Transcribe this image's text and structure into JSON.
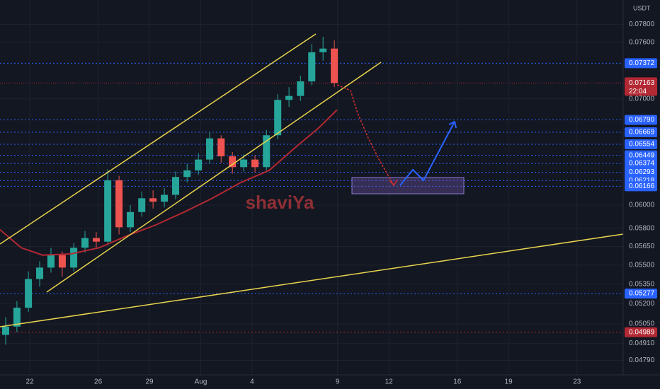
{
  "chart_data": {
    "type": "candlestick",
    "currency": "USDT",
    "watermark": "shaviYa",
    "log_scale": true,
    "grid": true,
    "up_color": "#26a69a",
    "down_color": "#ef5350",
    "x": [
      20.59,
      21.25,
      21.92,
      22.58,
      23.24,
      23.9,
      24.57,
      25.23,
      25.89,
      26.56,
      27.22,
      27.88,
      28.55,
      29.21,
      29.87,
      30.53,
      31.2,
      31.86,
      32.52,
      33.19,
      33.85,
      34.51,
      35.17,
      35.84,
      36.5,
      37.16,
      37.83,
      38.49,
      39.15,
      39.81
    ],
    "open": [
      0.0497,
      0.0503,
      0.0517,
      0.0539,
      0.0548,
      0.0558,
      0.0548,
      0.0564,
      0.0572,
      0.0569,
      0.0622,
      0.0581,
      0.0594,
      0.0606,
      0.0603,
      0.0609,
      0.0625,
      0.0631,
      0.0641,
      0.0661,
      0.0644,
      0.0634,
      0.0641,
      0.0634,
      0.0664,
      0.0699,
      0.0703,
      0.0718,
      0.0749,
      0.0753
    ],
    "high": [
      0.051,
      0.0522,
      0.0545,
      0.0553,
      0.0564,
      0.0561,
      0.0568,
      0.0578,
      0.0577,
      0.0632,
      0.0626,
      0.06,
      0.0612,
      0.0613,
      0.0615,
      0.063,
      0.0637,
      0.0647,
      0.0667,
      0.0664,
      0.0648,
      0.0646,
      0.0645,
      0.0669,
      0.0705,
      0.0712,
      0.0724,
      0.0758,
      0.0766,
      0.0762
    ],
    "low": [
      0.049,
      0.0499,
      0.0514,
      0.0533,
      0.0544,
      0.0541,
      0.0545,
      0.056,
      0.0563,
      0.0566,
      0.0575,
      0.0577,
      0.059,
      0.0597,
      0.0598,
      0.0605,
      0.062,
      0.0627,
      0.0637,
      0.0638,
      0.0628,
      0.063,
      0.0629,
      0.0631,
      0.066,
      0.0692,
      0.0698,
      0.0714,
      0.074,
      0.0712
    ],
    "close": [
      0.0503,
      0.0517,
      0.0539,
      0.0548,
      0.0558,
      0.0548,
      0.0564,
      0.0572,
      0.0569,
      0.0622,
      0.0581,
      0.0594,
      0.0606,
      0.0603,
      0.0609,
      0.0625,
      0.0631,
      0.0641,
      0.0661,
      0.0644,
      0.0634,
      0.0641,
      0.0634,
      0.0664,
      0.0699,
      0.0703,
      0.0718,
      0.0749,
      0.0753,
      0.07163
    ],
    "ma": {
      "color": "#b22833",
      "x": [
        20.26,
        21.5,
        22.75,
        24.4,
        26.06,
        27.71,
        29.37,
        31.03,
        32.68,
        34.34,
        36.0,
        37.65,
        38.89,
        39.97
      ],
      "values": [
        0.0579,
        0.0564,
        0.0558,
        0.0559,
        0.0564,
        0.0574,
        0.0583,
        0.0594,
        0.0606,
        0.062,
        0.0631,
        0.0654,
        0.0671,
        0.0689
      ]
    },
    "xlim": [
      20.26,
      56.7
    ],
    "xticks": [
      22,
      26,
      29,
      {
        "value": 32,
        "label": "Aug"
      },
      {
        "value": 35,
        "label": "4"
      },
      {
        "value": 40,
        "label": "9"
      },
      {
        "value": 43,
        "label": "12"
      },
      {
        "value": 47,
        "label": "16"
      },
      {
        "value": 50,
        "label": "19"
      },
      {
        "value": 54,
        "label": "23"
      }
    ],
    "ylim": [
      0.0469,
      0.0808
    ],
    "yticks": [
      {
        "value": 0.078,
        "label": "0.07800"
      },
      {
        "value": 0.076,
        "label": "0.07600"
      },
      {
        "value": 0.07,
        "label": "0.07000"
      },
      {
        "value": 0.06,
        "label": "0.06000"
      },
      {
        "value": 0.058,
        "label": "0.05800"
      },
      {
        "value": 0.0565,
        "label": "0.05650"
      },
      {
        "value": 0.055,
        "label": "0.05500"
      },
      {
        "value": 0.0535,
        "label": "0.05350"
      },
      {
        "value": 0.052,
        "label": "0.05200"
      },
      {
        "value": 0.0505,
        "label": "0.05050"
      },
      {
        "value": 0.0491,
        "label": "0.04910"
      },
      {
        "value": 0.0479,
        "label": "0.04790"
      }
    ],
    "levels": [
      {
        "value": 0.07372,
        "color": "#2962ff"
      },
      {
        "value": 0.0679,
        "label": "0.06790",
        "color": "#2962ff"
      },
      {
        "value": 0.06669,
        "color": "#2962ff"
      },
      {
        "value": 0.06554,
        "color": "#2962ff"
      },
      {
        "value": 0.06449,
        "color": "#2962ff"
      },
      {
        "value": 0.06374,
        "color": "#2962ff"
      },
      {
        "value": 0.06293,
        "color": "#2962ff"
      },
      {
        "value": 0.06218,
        "color": "#2962ff"
      },
      {
        "value": 0.06166,
        "color": "#2962ff"
      },
      {
        "value": 0.05277,
        "color": "#2962ff"
      },
      {
        "value": 0.04989,
        "color": "#b22833"
      }
    ],
    "current_price": {
      "value": 0.07163,
      "countdown": "22:04",
      "color": "#b22833"
    }
  }
}
